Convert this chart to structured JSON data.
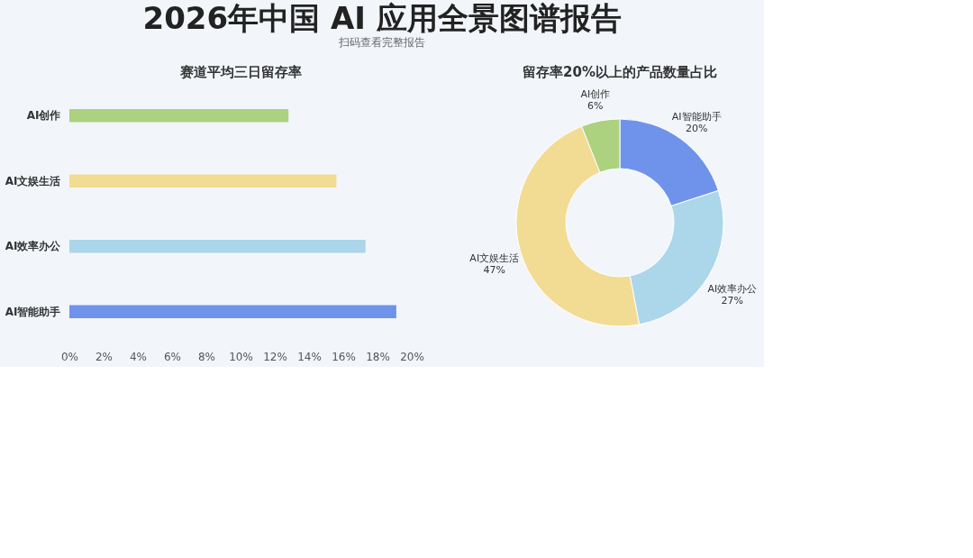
{
  "chart_data": [
    {
      "type": "bar",
      "orientation": "horizontal",
      "title": "赛道平均三日留存率",
      "annotations": [
        "2026年中国 AI 应用全景图谱报告",
        "扫码查看完整报告"
      ],
      "categories": [
        "AI创作",
        "AI文娱生活",
        "AI效率办公",
        "AI智能助手"
      ],
      "values": [
        12.8,
        15.6,
        17.3,
        19.1
      ],
      "colors": [
        "#acd17f",
        "#f2dc93",
        "#acd6ea",
        "#6f93ea"
      ],
      "xlim": [
        0,
        20
      ],
      "xticks": [
        {
          "value": 0,
          "label": "0%"
        },
        {
          "value": 2,
          "label": "2%"
        },
        {
          "value": 4,
          "label": "4%"
        },
        {
          "value": 6,
          "label": "6%"
        },
        {
          "value": 8,
          "label": "8%"
        },
        {
          "value": 10,
          "label": "10%"
        },
        {
          "value": 12,
          "label": "12%"
        },
        {
          "value": 14,
          "label": "14%"
        },
        {
          "value": 16,
          "label": "16%"
        },
        {
          "value": 18,
          "label": "18%"
        },
        {
          "value": 20,
          "label": "20%"
        }
      ],
      "grid": false,
      "legend": false
    },
    {
      "type": "donut",
      "title": "留存率20%以上的产品数量占比",
      "categories": [
        "AI智能助手",
        "AI效率办公",
        "AI文娱生活",
        "AI创作"
      ],
      "values": [
        20,
        27,
        47,
        6
      ],
      "value_labels": [
        "20%",
        "27%",
        "47%",
        "6%"
      ],
      "colors": [
        "#6f93ea",
        "#acd6ea",
        "#f2dc93",
        "#acd17f"
      ],
      "legend": false
    }
  ]
}
